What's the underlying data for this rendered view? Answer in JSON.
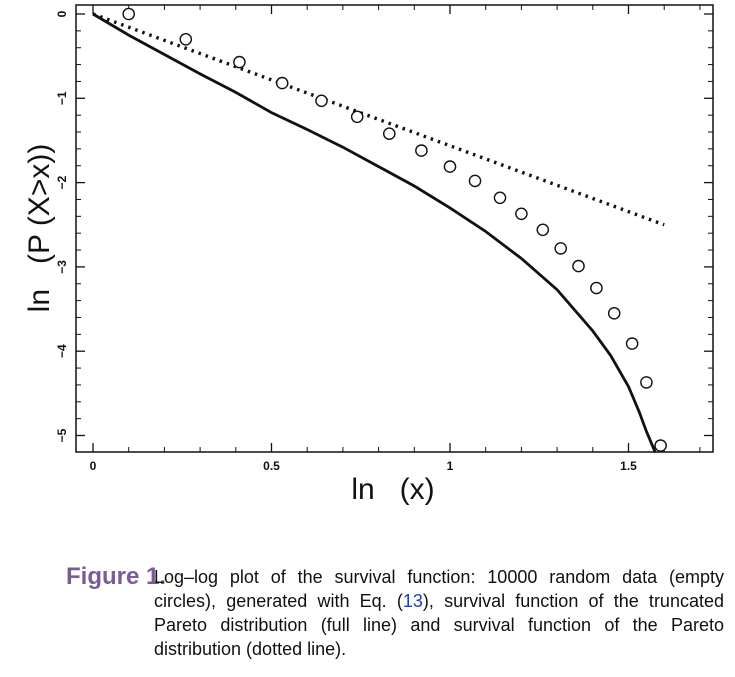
{
  "chart_data": {
    "type": "scatter",
    "title": "",
    "xlabel": "ln   (x)",
    "ylabel": "ln   (P (X>x))",
    "xlim": [
      -0.05,
      1.75
    ],
    "ylim": [
      -5.2,
      0.05
    ],
    "x_ticks": [
      0,
      0.5,
      1,
      1.5
    ],
    "x_tick_labels": [
      "0",
      "0.5",
      "1",
      "1.5"
    ],
    "y_ticks": [
      0,
      -1,
      -2,
      -3,
      -4,
      -5
    ],
    "y_tick_labels": [
      "0",
      "−1",
      "−2",
      "−3",
      "−4",
      "−5"
    ],
    "grid": false,
    "legend": "none",
    "series": [
      {
        "style": "empty circles",
        "x": [
          0.1,
          0.26,
          0.41,
          0.53,
          0.64,
          0.74,
          0.83,
          0.92,
          1.0,
          1.07,
          1.14,
          1.2,
          1.26,
          1.31,
          1.36,
          1.41,
          1.46,
          1.51,
          1.55,
          1.59
        ],
        "y": [
          0.0,
          -0.3,
          -0.57,
          -0.82,
          -1.03,
          -1.22,
          -1.42,
          -1.62,
          -1.81,
          -1.98,
          -2.18,
          -2.37,
          -2.56,
          -2.78,
          -2.99,
          -3.25,
          -3.55,
          -3.91,
          -4.37,
          -5.12
        ]
      },
      {
        "style": "full line",
        "x": [
          0.0,
          0.1,
          0.2,
          0.3,
          0.4,
          0.5,
          0.6,
          0.7,
          0.8,
          0.9,
          1.0,
          1.1,
          1.2,
          1.3,
          1.4,
          1.45,
          1.5,
          1.53,
          1.55,
          1.565,
          1.575
        ],
        "y": [
          0.0,
          -0.25,
          -0.48,
          -0.71,
          -0.93,
          -1.17,
          -1.37,
          -1.58,
          -1.81,
          -2.04,
          -2.3,
          -2.58,
          -2.9,
          -3.27,
          -3.76,
          -4.05,
          -4.42,
          -4.72,
          -4.95,
          -5.1,
          -5.2
        ]
      },
      {
        "style": "dotted line",
        "x": [
          0.0,
          1.6
        ],
        "y": [
          0.0,
          -2.5
        ]
      }
    ]
  },
  "caption": {
    "label": "Figure 1.",
    "text_before": "Log–log plot of the survival function: 10000 random data (empty circles), generated with Eq. (",
    "ref": "13",
    "text_after": "), survival function of the truncated Pareto distribution (full line) and survival function of the Pareto distribution (dotted line)."
  }
}
